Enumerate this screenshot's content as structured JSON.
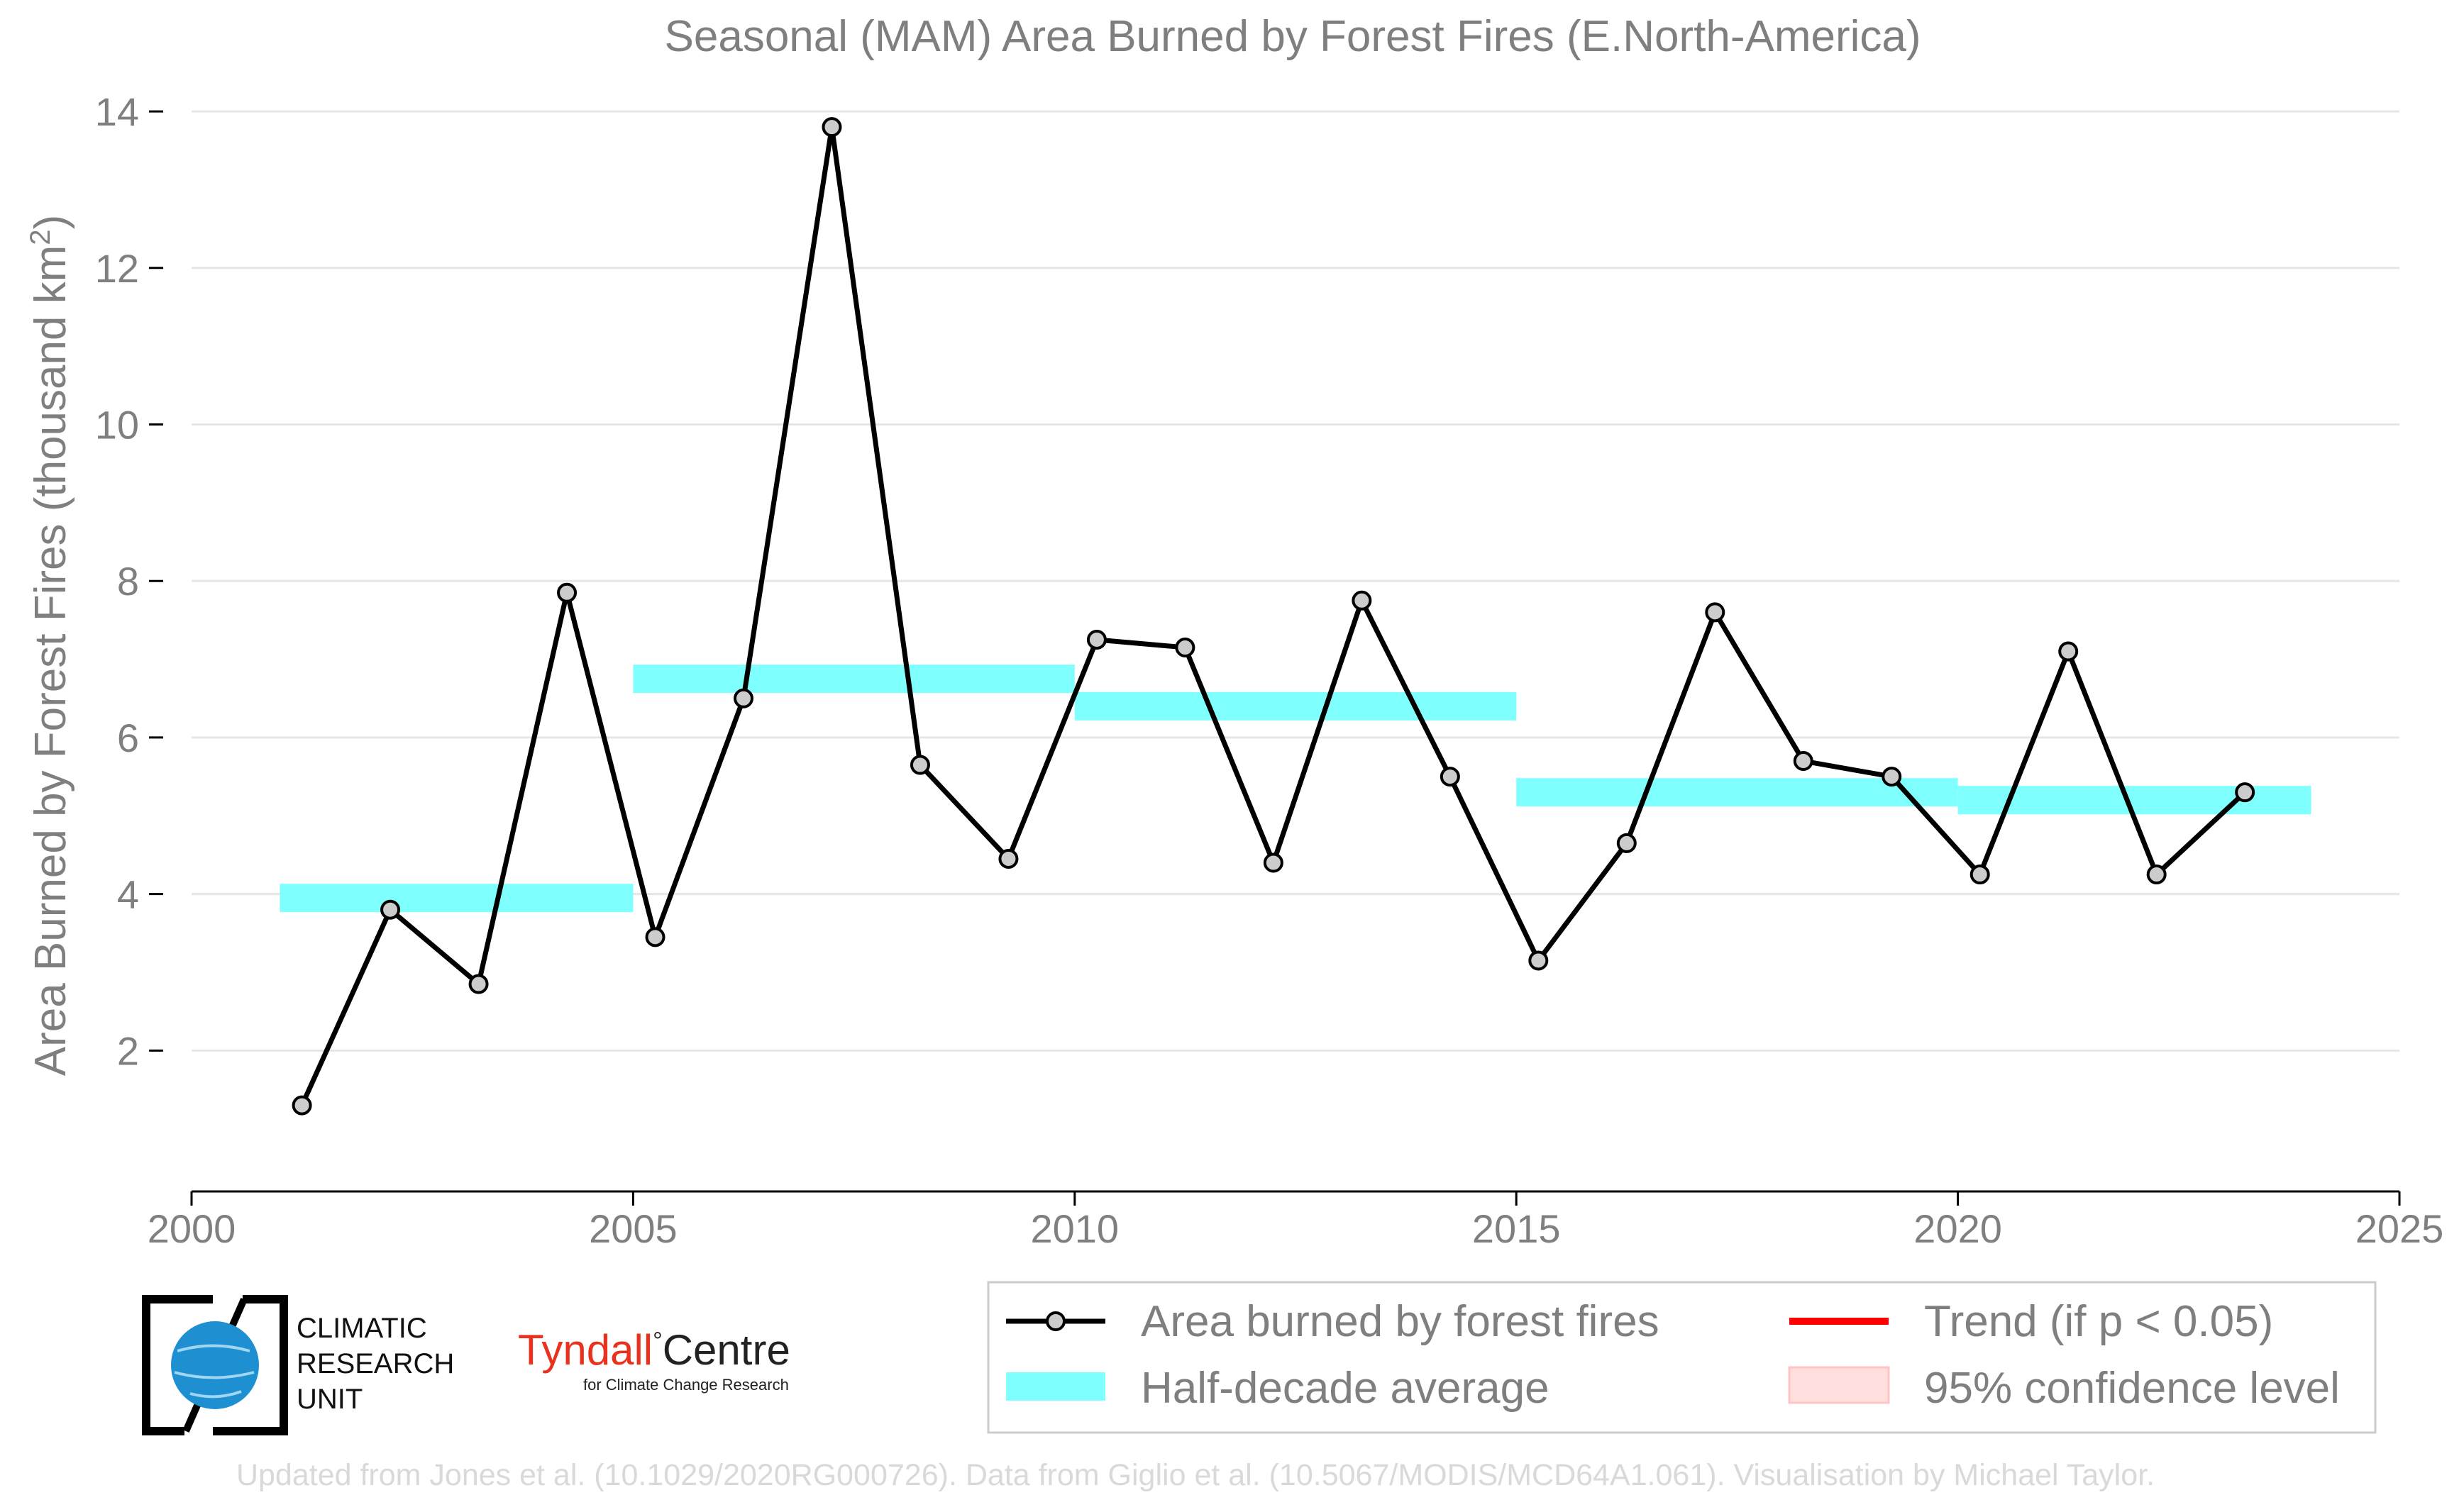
{
  "chart_data": {
    "type": "line",
    "title": "Seasonal (MAM) Area Burned by Forest Fires (E.North-America)",
    "ylabel_main": "Area Burned by Forest Fires (thousand km",
    "ylabel_sup": "2",
    "ylabel_end": ")",
    "xlim": [
      2000,
      2025
    ],
    "ylim": [
      0.2,
      14.2
    ],
    "xticks": [
      2000,
      2005,
      2010,
      2015,
      2020,
      2025
    ],
    "yticks": [
      2,
      4,
      6,
      8,
      10,
      12,
      14
    ],
    "series": [
      {
        "name": "Area burned by forest fires",
        "color": "#000000",
        "x": [
          2001.25,
          2002.25,
          2003.25,
          2004.25,
          2005.25,
          2006.25,
          2007.25,
          2008.25,
          2009.25,
          2010.25,
          2011.25,
          2012.25,
          2013.25,
          2014.25,
          2015.25,
          2016.25,
          2017.25,
          2018.25,
          2019.25,
          2020.25,
          2021.25,
          2022.25,
          2023.25
        ],
        "values": [
          1.3,
          3.8,
          2.85,
          7.85,
          3.45,
          6.5,
          13.8,
          5.65,
          4.45,
          7.25,
          7.15,
          4.4,
          7.75,
          5.5,
          3.15,
          4.65,
          7.6,
          5.7,
          5.5,
          4.25,
          7.1,
          4.25,
          5.3
        ]
      }
    ],
    "half_decade_average": {
      "name": "Half-decade average",
      "color": "#80ffff",
      "segments": [
        {
          "x0": 2001,
          "x1": 2005,
          "value": 3.95
        },
        {
          "x0": 2005,
          "x1": 2010,
          "value": 6.75
        },
        {
          "x0": 2010,
          "x1": 2015,
          "value": 6.4
        },
        {
          "x0": 2015,
          "x1": 2020,
          "value": 5.3
        },
        {
          "x0": 2020,
          "x1": 2024,
          "value": 5.2
        }
      ]
    },
    "legend": [
      {
        "label": "Area burned by forest fires",
        "kind": "line-marker",
        "color": "#000000"
      },
      {
        "label": "Trend (if p < 0.05)",
        "kind": "line",
        "color": "#ff0000"
      },
      {
        "label": "Half-decade average",
        "kind": "band",
        "color": "#80ffff"
      },
      {
        "label": "95% confidence level",
        "kind": "patch",
        "color": "#ffdede"
      }
    ],
    "legend_position": "bottom-right",
    "grid": "horizontal"
  },
  "logos": {
    "cru_lines": [
      "CLIMATIC",
      "RESEARCH",
      "UNIT"
    ],
    "tyndall_name": "Tyndall",
    "tyndall_centre": "Centre",
    "tyndall_sub": "for Climate Change Research",
    "tyndall_color": "#e8321e",
    "cru_globe_color": "#1e8fd0"
  },
  "credit": "Updated from Jones et al. (10.1029/2020RG000726). Data from Giglio et al. (10.5067/MODIS/MCD64A1.061). Visualisation by Michael Taylor."
}
